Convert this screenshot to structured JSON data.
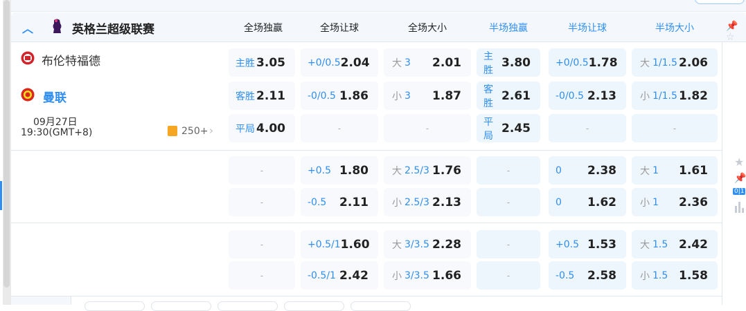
{
  "league": {
    "name": "英格兰超级联赛",
    "collapse_icon": "chevron-up-icon",
    "logo_icon": "premier-league-lion-icon"
  },
  "columns": [
    "全场独赢",
    "全场让球",
    "全场大小",
    "半场独赢",
    "半场让球",
    "半场大小"
  ],
  "colors": {
    "accent": "#2f8ef0",
    "header_bg": "#f4f8fd",
    "cell_full": "#f7f9fc",
    "cell_half": "#eef6fd",
    "orange": "#f5a623"
  },
  "match": {
    "home": "布伦特福德",
    "away": "曼联",
    "date": "09月27日",
    "time": "19:30(GMT+8)",
    "more_count": "250+"
  },
  "rows": [
    [
      {
        "line": "主胜",
        "val": "3.05"
      },
      {
        "line": "+0/0.5",
        "val": "2.04"
      },
      {
        "pre": "大",
        "line": "3",
        "val": "2.01"
      },
      {
        "line": "主胜",
        "val": "3.80"
      },
      {
        "line": "+0/0.5",
        "val": "1.78"
      },
      {
        "pre": "大",
        "line": "1/1.5",
        "val": "2.06"
      }
    ],
    [
      {
        "line": "客胜",
        "val": "2.11"
      },
      {
        "line": "-0/0.5",
        "val": "1.86"
      },
      {
        "pre": "小",
        "line": "3",
        "val": "1.87"
      },
      {
        "line": "客胜",
        "val": "2.61"
      },
      {
        "line": "-0/0.5",
        "val": "2.13"
      },
      {
        "pre": "小",
        "line": "1/1.5",
        "val": "1.82"
      }
    ],
    [
      {
        "line": "平局",
        "val": "4.00"
      },
      {
        "dash": "-"
      },
      {
        "dash": "-"
      },
      {
        "line": "平局",
        "val": "2.45"
      },
      {
        "dash": "-"
      },
      {
        "dash": "-"
      }
    ],
    [
      {
        "dash": "-"
      },
      {
        "line": "+0.5",
        "val": "1.80"
      },
      {
        "pre": "大",
        "line": "2.5/3",
        "val": "1.76"
      },
      {
        "dash": "-"
      },
      {
        "line": "0",
        "val": "2.38"
      },
      {
        "pre": "大",
        "line": "1",
        "val": "1.61"
      }
    ],
    [
      {
        "dash": "-"
      },
      {
        "line": "-0.5",
        "val": "2.11"
      },
      {
        "pre": "小",
        "line": "2.5/3",
        "val": "2.13"
      },
      {
        "dash": "-"
      },
      {
        "line": "0",
        "val": "1.62"
      },
      {
        "pre": "小",
        "line": "1",
        "val": "2.36"
      }
    ],
    [
      {
        "dash": "-"
      },
      {
        "line": "+0.5/1",
        "val": "1.60"
      },
      {
        "pre": "大",
        "line": "3/3.5",
        "val": "2.28"
      },
      {
        "dash": "-"
      },
      {
        "line": "+0.5",
        "val": "1.53"
      },
      {
        "pre": "大",
        "line": "1.5",
        "val": "2.42"
      }
    ],
    [
      {
        "dash": "-"
      },
      {
        "line": "-0.5/1",
        "val": "2.42"
      },
      {
        "pre": "小",
        "line": "3/3.5",
        "val": "1.66"
      },
      {
        "dash": "-"
      },
      {
        "line": "-0.5",
        "val": "2.58"
      },
      {
        "pre": "小",
        "line": "1.5",
        "val": "1.58"
      }
    ]
  ],
  "side_icons": {
    "star": "star-icon",
    "pin": "pin-icon",
    "score_label": "0|1",
    "stats": "bar-chart-icon"
  }
}
